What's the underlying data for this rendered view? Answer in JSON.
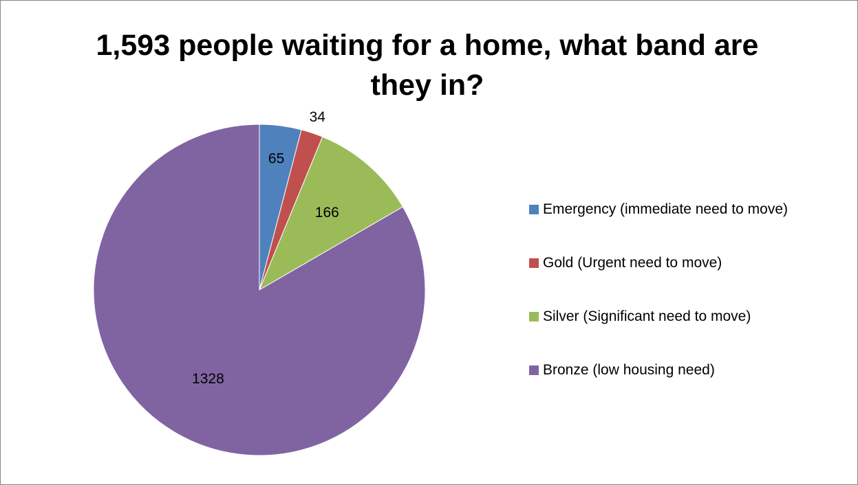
{
  "chart_data": {
    "type": "pie",
    "title": "1,593 people waiting for a home, what band are they in?",
    "categories": [
      "Emergency (immediate need to move)",
      "Gold (Urgent need to move)",
      "Silver (Significant need to move)",
      "Bronze (low housing need)"
    ],
    "values": [
      65,
      34,
      166,
      1328
    ],
    "data_labels": [
      "65",
      "34",
      "166",
      "1328"
    ],
    "colors": [
      "#4F81BD",
      "#C0504D",
      "#9BBB59",
      "#8064A2"
    ],
    "start_angle": "12 o'clock",
    "direction": "clockwise",
    "legend_position": "right"
  }
}
